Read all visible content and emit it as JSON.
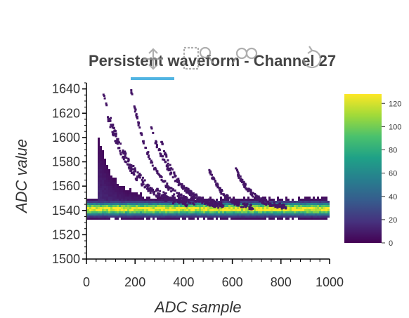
{
  "chart_data": {
    "type": "heatmap",
    "title": "Persistent waveform - Channel 27",
    "xlabel": "ADC sample",
    "ylabel": "ADC value",
    "xlim": [
      0,
      1000
    ],
    "ylim": [
      1500,
      1645
    ],
    "xticks": [
      "0",
      "200",
      "400",
      "600",
      "800",
      "1000"
    ],
    "yticks": [
      "1500",
      "1520",
      "1540",
      "1560",
      "1580",
      "1600",
      "1620",
      "1640"
    ],
    "baseline_value": 1542,
    "pulse_onset_sample": 40,
    "pulse_peak_sample": 60,
    "colorbar": {
      "range": [
        0,
        128
      ],
      "ticks": [
        "0",
        "20",
        "40",
        "60",
        "80",
        "100",
        "120"
      ],
      "colormap": [
        "#440154",
        "#46327e",
        "#365c8d",
        "#277f8e",
        "#1fa187",
        "#4ac16d",
        "#a0da39",
        "#fde725"
      ]
    },
    "grid": false
  },
  "toolbar": {
    "icons": [
      "pan-icon",
      "box-zoom-icon",
      "wheel-zoom-icon",
      "zoom-icon",
      "reset-icon"
    ],
    "active_color": "#26a2dc"
  }
}
